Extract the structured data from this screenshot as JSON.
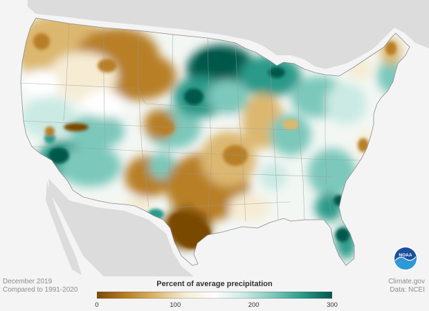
{
  "map": {
    "region": "contiguous United States",
    "variable": "percent of average precipitation",
    "highlights": {
      "wet": [
        "Upper Midwest (Minnesota, Wisconsin, Michigan)",
        "Southern California",
        "Southeast coast (Georgia, South Carolina, Florida)",
        "Southwest (Arizona, New Mexico)"
      ],
      "dry": [
        "Northern Plains and Montana",
        "Texas and southern Plains",
        "lower Mississippi Valley",
        "Pacific Northwest"
      ]
    }
  },
  "legend": {
    "title": "Percent of average precipitation",
    "ticks": [
      "0",
      "100",
      "200",
      "300"
    ],
    "tick_values": [
      0,
      100,
      200,
      300
    ],
    "min": 0,
    "max": 300,
    "colors": [
      "#7a4a05",
      "#b87f25",
      "#dcb76f",
      "#f6ecd4",
      "#ffffff",
      "#cbeae4",
      "#7cc8bb",
      "#2a9a89",
      "#00584b"
    ]
  },
  "footer": {
    "date": "December 2019",
    "comparison": "Compared to 1991-2020",
    "source": "Climate.gov",
    "data": "Data: NCEI"
  },
  "logo": {
    "text": "NOAA",
    "icon": "noaa-logo-icon"
  }
}
